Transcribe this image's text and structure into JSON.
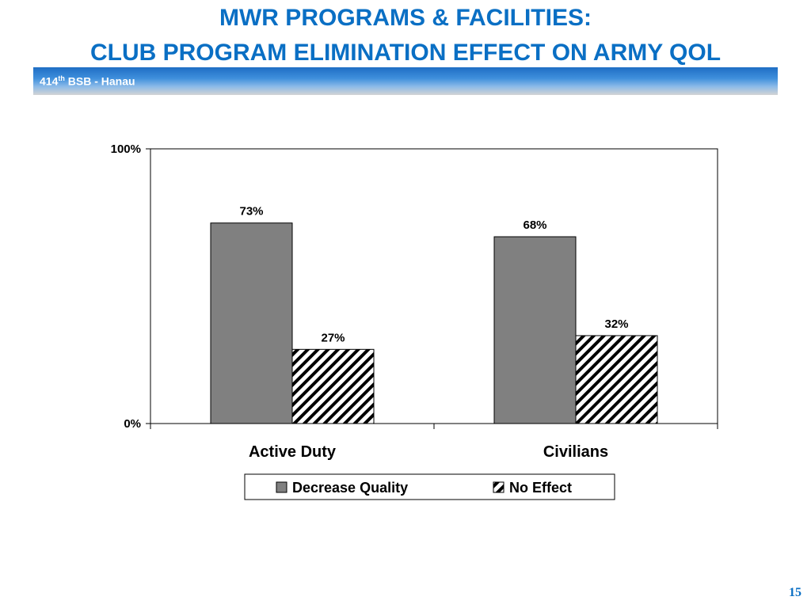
{
  "header": {
    "title_line1": "MWR PROGRAMS & FACILITIES:",
    "title_line2": "CLUB PROGRAM ELIMINATION EFFECT ON ARMY QOL",
    "subtitle_base": "414",
    "subtitle_sup": "th",
    "subtitle_rest": " BSB - Hanau"
  },
  "page_number": "15",
  "colors": {
    "title": "#0a6fc4",
    "decrease_quality": "#808080",
    "no_effect_pattern": "#000000"
  },
  "chart_data": {
    "type": "bar",
    "categories": [
      "Active Duty",
      "Civilians"
    ],
    "series": [
      {
        "name": "Decrease Quality",
        "values": [
          73,
          68
        ],
        "labels": [
          "73%",
          "68%"
        ],
        "fill": "solid-gray"
      },
      {
        "name": "No Effect",
        "values": [
          27,
          32
        ],
        "labels": [
          "27%",
          "32%"
        ],
        "fill": "diagonal-hatch"
      }
    ],
    "ylim": [
      0,
      100
    ],
    "yticks": [
      0,
      100
    ],
    "ytick_labels": [
      "0%",
      "100%"
    ],
    "grid": false,
    "legend": "bottom",
    "title": "",
    "xlabel": "",
    "ylabel": ""
  }
}
